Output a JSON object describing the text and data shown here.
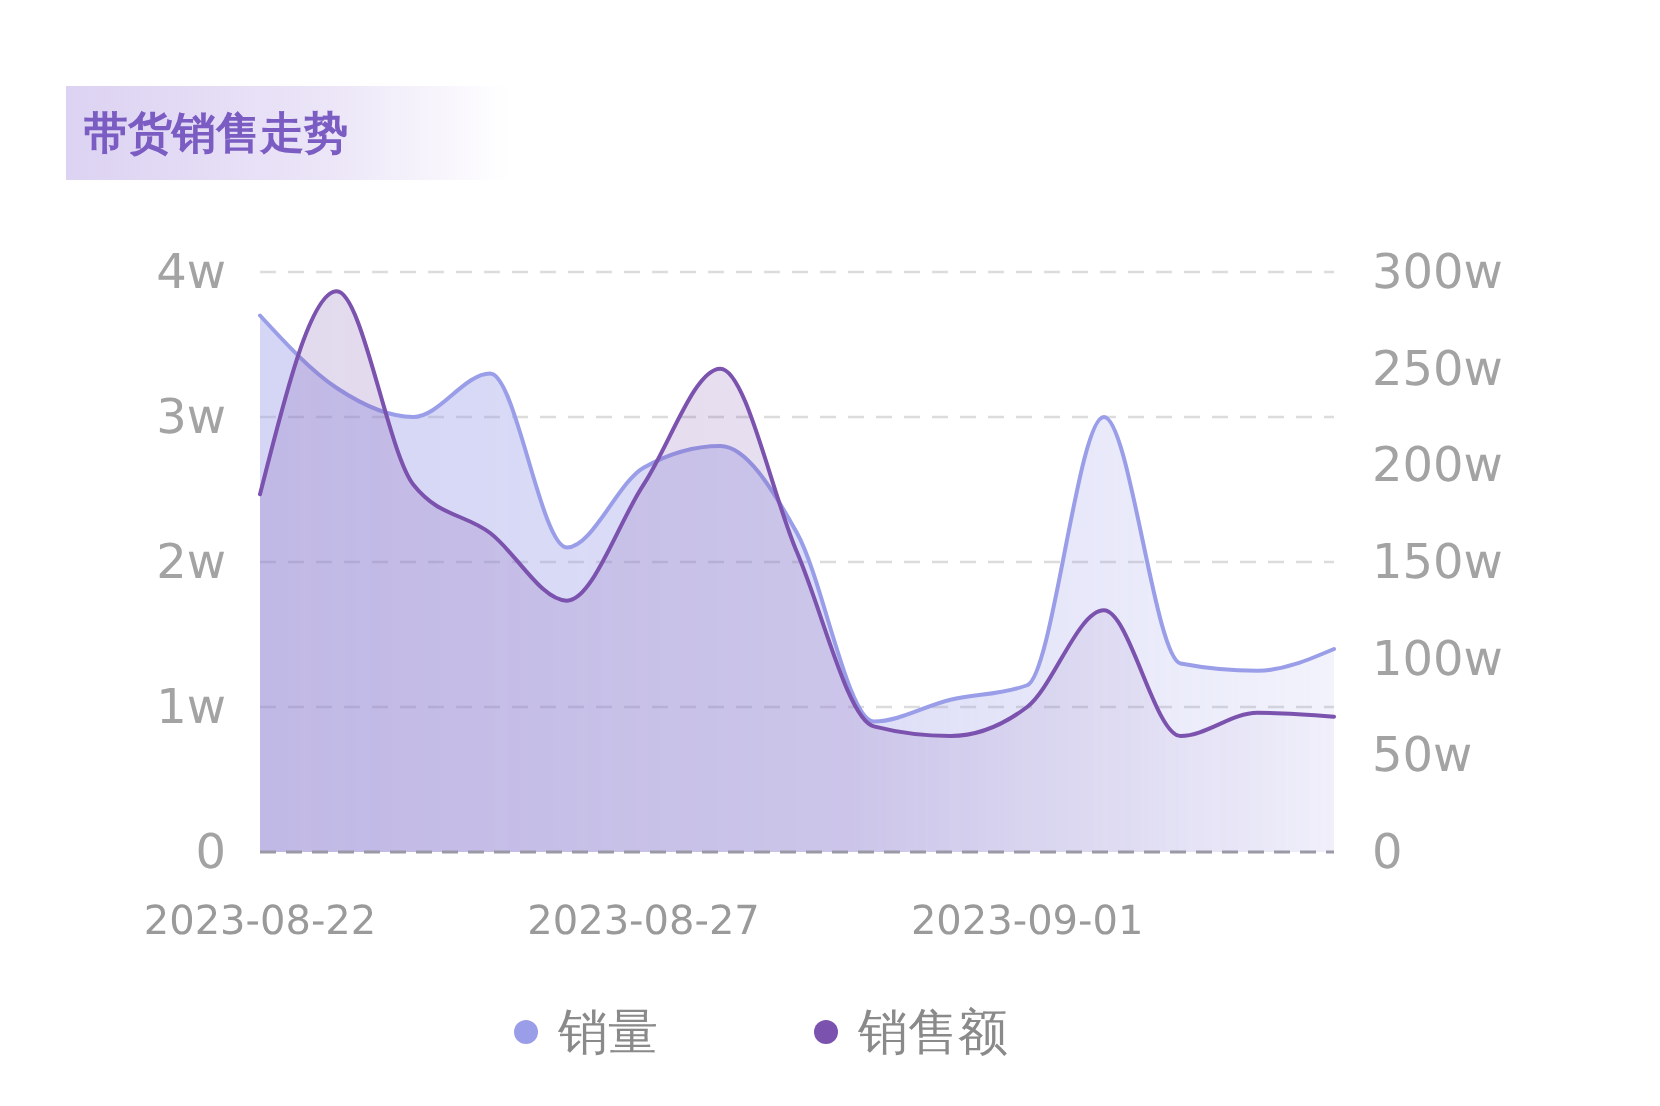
{
  "chart_data": {
    "type": "area",
    "title": "带货销售走势",
    "x": [
      "2023-08-22",
      "2023-08-23",
      "2023-08-24",
      "2023-08-25",
      "2023-08-26",
      "2023-08-27",
      "2023-08-28",
      "2023-08-29",
      "2023-08-30",
      "2023-08-31",
      "2023-09-01",
      "2023-09-02",
      "2023-09-03",
      "2023-09-04",
      "2023-09-05"
    ],
    "xlim": [
      "2023-08-22",
      "2023-09-05"
    ],
    "xticks": [
      "2023-08-22",
      "2023-08-27",
      "2023-09-01"
    ],
    "ylim": [
      0,
      4
    ],
    "yticks": [
      0,
      {
        "value": 1,
        "label": "1w"
      },
      {
        "value": 2,
        "label": "2w"
      },
      {
        "value": 3,
        "label": "3w"
      },
      {
        "value": 4,
        "label": "4w"
      }
    ],
    "y2lim": [
      0,
      300
    ],
    "y2ticks": [
      0,
      {
        "value": 50,
        "label": "50w"
      },
      {
        "value": 100,
        "label": "100w"
      },
      {
        "value": 150,
        "label": "150w"
      },
      {
        "value": 200,
        "label": "200w"
      },
      {
        "value": 250,
        "label": "250w"
      },
      {
        "value": 300,
        "label": "300w"
      }
    ],
    "series": [
      {
        "name": "销量",
        "color": "#9a9ee8",
        "values": [
          3.7,
          3.2,
          3.0,
          3.3,
          2.1,
          2.65,
          2.8,
          2.2,
          0.9,
          1.05,
          1.15,
          3.0,
          1.3,
          1.25,
          1.4
        ]
      },
      {
        "name": "销售额",
        "color": "#7b52ae",
        "axis": "y2",
        "values": [
          185,
          290,
          190,
          165,
          130,
          190,
          250,
          155,
          65,
          60,
          75,
          125,
          60,
          72,
          70
        ]
      }
    ],
    "grid": "y",
    "legend": "bottom"
  }
}
